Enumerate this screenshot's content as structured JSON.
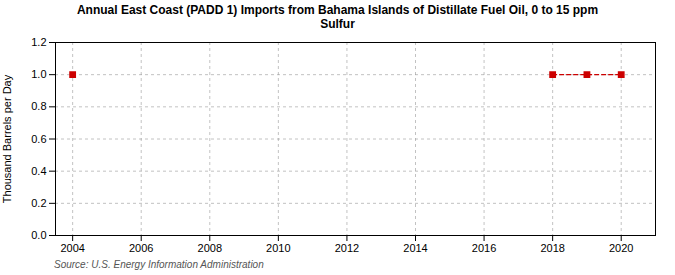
{
  "chart_data": {
    "type": "line",
    "title": "Annual East Coast (PADD 1) Imports from Bahama Islands of Distillate Fuel Oil, 0 to 15 ppm\nSulfur",
    "ylabel": "Thousand Barrels per Day",
    "source": "Source: U.S. Energy Information Administration",
    "x": [
      2004,
      2005,
      2006,
      2007,
      2008,
      2009,
      2010,
      2011,
      2012,
      2013,
      2014,
      2015,
      2016,
      2017,
      2018,
      2019,
      2020
    ],
    "values": [
      1.0,
      null,
      null,
      null,
      null,
      null,
      null,
      null,
      null,
      null,
      null,
      null,
      null,
      null,
      1.0,
      1.0,
      1.0
    ],
    "color": "#cc0000",
    "marker": "square",
    "line_style": "dashed",
    "xlim": [
      2003.5,
      2021
    ],
    "ylim": [
      0.0,
      1.2
    ],
    "xticks": [
      2004,
      2006,
      2008,
      2010,
      2012,
      2014,
      2016,
      2018,
      2020
    ],
    "yticks": [
      {
        "value": 0.0,
        "label": "0.0"
      },
      0.2,
      0.4,
      0.6,
      0.8,
      {
        "value": 1.0,
        "label": "1.0"
      },
      1.2
    ],
    "grid": true
  }
}
